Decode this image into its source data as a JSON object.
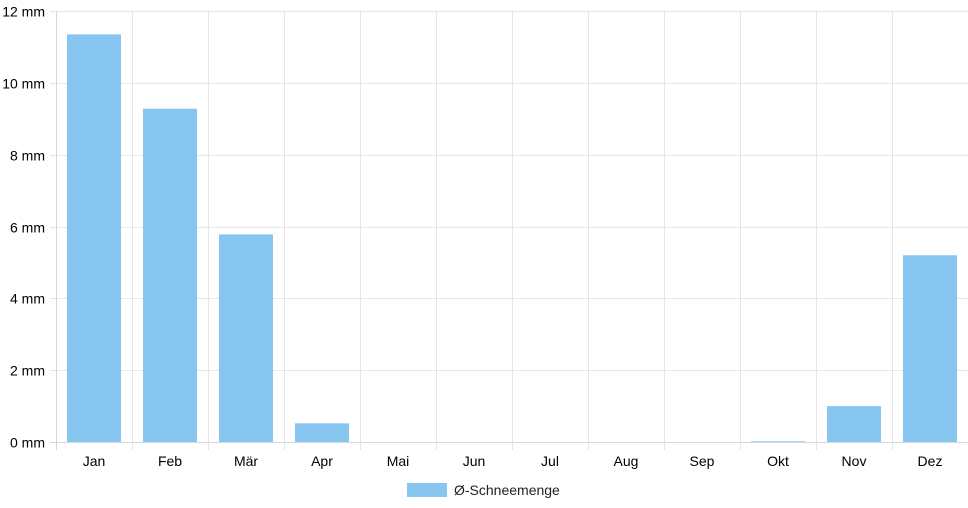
{
  "chart_data": {
    "type": "bar",
    "categories": [
      "Jan",
      "Feb",
      "Mär",
      "Apr",
      "Mai",
      "Jun",
      "Jul",
      "Aug",
      "Sep",
      "Okt",
      "Nov",
      "Dez"
    ],
    "series": [
      {
        "name": "Ø-Schneemenge",
        "values": [
          11.35,
          9.28,
          5.78,
          0.52,
          0,
          0,
          0,
          0,
          0,
          0.02,
          1.0,
          5.2
        ],
        "color": "#88c6f2"
      }
    ],
    "y_ticks": [
      "0 mm",
      "2 mm",
      "4 mm",
      "6 mm",
      "8 mm",
      "10 mm",
      "12 mm"
    ],
    "ylim": [
      0,
      12
    ],
    "y_unit": "mm",
    "grid": true,
    "legend_position": "bottom-center",
    "colors": {
      "grid": "#e6e6e6",
      "axis": "#d6d6d6"
    }
  }
}
